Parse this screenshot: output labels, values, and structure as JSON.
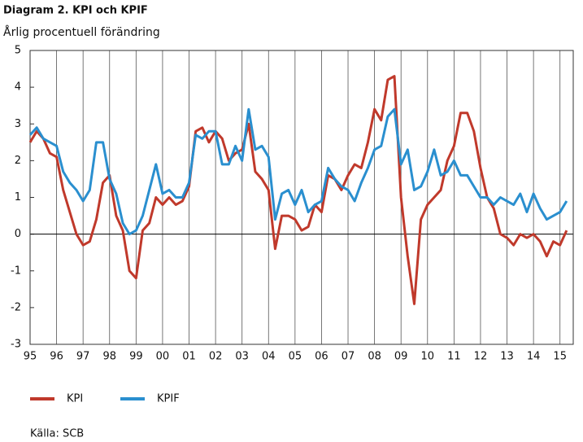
{
  "chart_data": {
    "type": "line",
    "title": "Diagram 2. KPI och KPIF",
    "subtitle": "Årlig procentuell förändring",
    "source": "Källa: SCB",
    "x": [
      1995,
      1995.25,
      1995.5,
      1995.75,
      1996,
      1996.25,
      1996.5,
      1996.75,
      1997,
      1997.25,
      1997.5,
      1997.75,
      1998,
      1998.25,
      1998.5,
      1998.75,
      1999,
      1999.25,
      1999.5,
      1999.75,
      2000,
      2000.25,
      2000.5,
      2000.75,
      2001,
      2001.25,
      2001.5,
      2001.75,
      2002,
      2002.25,
      2002.5,
      2002.75,
      2003,
      2003.25,
      2003.5,
      2003.75,
      2004,
      2004.25,
      2004.5,
      2004.75,
      2005,
      2005.25,
      2005.5,
      2005.75,
      2006,
      2006.25,
      2006.5,
      2006.75,
      2007,
      2007.25,
      2007.5,
      2007.75,
      2008,
      2008.25,
      2008.5,
      2008.75,
      2009,
      2009.25,
      2009.5,
      2009.75,
      2010,
      2010.25,
      2010.5,
      2010.75,
      2011,
      2011.25,
      2011.5,
      2011.75,
      2012,
      2012.25,
      2012.5,
      2012.75,
      2013,
      2013.25,
      2013.5,
      2013.75,
      2014,
      2014.25,
      2014.5,
      2014.75,
      2015,
      2015.25
    ],
    "series": [
      {
        "name": "KPI",
        "color": "#c0392b",
        "values": [
          2.5,
          2.8,
          2.6,
          2.2,
          2.1,
          1.2,
          0.6,
          0.0,
          -0.3,
          -0.2,
          0.4,
          1.4,
          1.6,
          0.5,
          0.1,
          -1.0,
          -1.2,
          0.1,
          0.3,
          1.0,
          0.8,
          1.0,
          0.8,
          0.9,
          1.3,
          2.8,
          2.9,
          2.5,
          2.8,
          2.6,
          2.0,
          2.2,
          2.3,
          3.0,
          1.7,
          1.5,
          1.2,
          -0.4,
          0.5,
          0.5,
          0.4,
          0.1,
          0.2,
          0.8,
          0.6,
          1.6,
          1.5,
          1.2,
          1.6,
          1.9,
          1.8,
          2.5,
          3.4,
          3.1,
          4.2,
          4.3,
          1.0,
          -0.6,
          -1.9,
          0.4,
          0.8,
          1.0,
          1.2,
          2.0,
          2.4,
          3.3,
          3.3,
          2.8,
          1.8,
          1.0,
          0.7,
          0.0,
          -0.1,
          -0.3,
          0.0,
          -0.1,
          0.0,
          -0.2,
          -0.6,
          -0.2,
          -0.3,
          0.1
        ]
      },
      {
        "name": "KPIF",
        "color": "#2a8fcf",
        "values": [
          2.7,
          2.9,
          2.6,
          2.5,
          2.4,
          1.7,
          1.4,
          1.2,
          0.9,
          1.2,
          2.5,
          2.5,
          1.5,
          1.1,
          0.3,
          0.0,
          0.1,
          0.5,
          1.2,
          1.9,
          1.1,
          1.2,
          1.0,
          1.0,
          1.4,
          2.7,
          2.6,
          2.8,
          2.8,
          1.9,
          1.9,
          2.4,
          2.0,
          3.4,
          2.3,
          2.4,
          2.1,
          0.4,
          1.1,
          1.2,
          0.8,
          1.2,
          0.6,
          0.8,
          0.9,
          1.8,
          1.5,
          1.3,
          1.2,
          0.9,
          1.4,
          1.8,
          2.3,
          2.4,
          3.2,
          3.4,
          1.9,
          2.3,
          1.2,
          1.3,
          1.7,
          2.3,
          1.6,
          1.7,
          2.0,
          1.6,
          1.6,
          1.3,
          1.0,
          1.0,
          0.8,
          1.0,
          0.9,
          0.8,
          1.1,
          0.6,
          1.1,
          0.7,
          0.4,
          0.5,
          0.6,
          0.9
        ]
      }
    ],
    "xlim": [
      1995,
      2015.5
    ],
    "xticks": [
      {
        "value": 1995,
        "label": "95"
      },
      {
        "value": 1996,
        "label": "96"
      },
      {
        "value": 1997,
        "label": "97"
      },
      {
        "value": 1998,
        "label": "98"
      },
      {
        "value": 1999,
        "label": "99"
      },
      {
        "value": 2000,
        "label": "00"
      },
      {
        "value": 2001,
        "label": "01"
      },
      {
        "value": 2002,
        "label": "02"
      },
      {
        "value": 2003,
        "label": "03"
      },
      {
        "value": 2004,
        "label": "04"
      },
      {
        "value": 2005,
        "label": "05"
      },
      {
        "value": 2006,
        "label": "06"
      },
      {
        "value": 2007,
        "label": "07"
      },
      {
        "value": 2008,
        "label": "08"
      },
      {
        "value": 2009,
        "label": "09"
      },
      {
        "value": 2010,
        "label": "10"
      },
      {
        "value": 2011,
        "label": "11"
      },
      {
        "value": 2012,
        "label": "12"
      },
      {
        "value": 2013,
        "label": "13"
      },
      {
        "value": 2014,
        "label": "14"
      },
      {
        "value": 2015,
        "label": "15"
      }
    ],
    "ylim": [
      -3,
      5
    ],
    "yticks": [
      -3,
      -2,
      -1,
      0,
      1,
      2,
      3,
      4,
      5
    ],
    "grid": true
  }
}
